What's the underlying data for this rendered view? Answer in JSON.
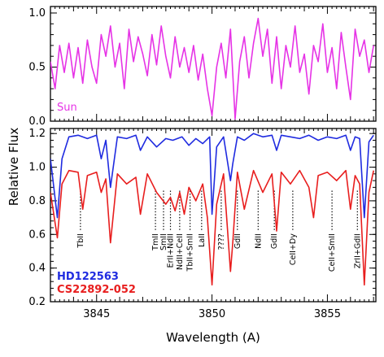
{
  "chart_data": [
    {
      "id": "sun-panel",
      "type": "line",
      "xlim": [
        3843.0,
        3857.1
      ],
      "ylim": [
        0.0,
        1.06
      ],
      "yticks": [
        0.0,
        0.5,
        1.0
      ],
      "ytick_labels": [
        "0.0",
        "0.5",
        "1.0"
      ],
      "series": [
        {
          "name": "Sun",
          "color": "#e633e6",
          "x": [
            3843.0,
            3843.2,
            3843.4,
            3843.6,
            3843.8,
            3844.0,
            3844.2,
            3844.4,
            3844.6,
            3844.8,
            3845.0,
            3845.2,
            3845.4,
            3845.6,
            3845.8,
            3846.0,
            3846.2,
            3846.4,
            3846.6,
            3846.8,
            3847.0,
            3847.2,
            3847.4,
            3847.6,
            3847.8,
            3848.0,
            3848.2,
            3848.4,
            3848.6,
            3848.8,
            3849.0,
            3849.2,
            3849.4,
            3849.6,
            3849.8,
            3850.0,
            3850.2,
            3850.4,
            3850.6,
            3850.8,
            3851.0,
            3851.2,
            3851.4,
            3851.6,
            3851.8,
            3852.0,
            3852.2,
            3852.4,
            3852.6,
            3852.8,
            3853.0,
            3853.2,
            3853.4,
            3853.6,
            3853.8,
            3854.0,
            3854.2,
            3854.4,
            3854.6,
            3854.8,
            3855.0,
            3855.2,
            3855.4,
            3855.6,
            3855.8,
            3856.0,
            3856.2,
            3856.4,
            3856.6,
            3856.8,
            3857.0
          ],
          "y": [
            0.55,
            0.3,
            0.7,
            0.45,
            0.72,
            0.4,
            0.68,
            0.35,
            0.75,
            0.5,
            0.35,
            0.8,
            0.6,
            0.88,
            0.5,
            0.72,
            0.3,
            0.85,
            0.55,
            0.78,
            0.62,
            0.42,
            0.8,
            0.52,
            0.88,
            0.6,
            0.4,
            0.78,
            0.5,
            0.68,
            0.45,
            0.7,
            0.38,
            0.62,
            0.3,
            0.05,
            0.5,
            0.72,
            0.4,
            0.85,
            0.02,
            0.55,
            0.78,
            0.4,
            0.72,
            0.95,
            0.6,
            0.85,
            0.35,
            0.78,
            0.3,
            0.7,
            0.5,
            0.88,
            0.45,
            0.62,
            0.25,
            0.7,
            0.55,
            0.9,
            0.45,
            0.68,
            0.3,
            0.82,
            0.5,
            0.2,
            0.85,
            0.6,
            0.75,
            0.45,
            0.7
          ]
        }
      ],
      "legend": {
        "text": "Sun",
        "placement": "bottom-left"
      }
    },
    {
      "id": "stars-panel",
      "type": "line",
      "xlim": [
        3843.0,
        3857.1
      ],
      "ylim": [
        0.2,
        1.23
      ],
      "xticks": [
        3845,
        3850,
        3855
      ],
      "xtick_labels": [
        "3845",
        "3850",
        "3855"
      ],
      "yticks": [
        0.2,
        0.4,
        0.6,
        0.8,
        1.0,
        1.2
      ],
      "ytick_labels": [
        "0.2",
        "0.4",
        "0.6",
        "0.8",
        "1.0",
        "1.2"
      ],
      "series": [
        {
          "name": "HD122563",
          "color": "#1f2be0",
          "x": [
            3843.0,
            3843.3,
            3843.5,
            3843.8,
            3844.2,
            3844.6,
            3845.0,
            3845.2,
            3845.4,
            3845.6,
            3845.9,
            3846.3,
            3846.7,
            3846.9,
            3847.2,
            3847.6,
            3848.0,
            3848.3,
            3848.7,
            3849.0,
            3849.3,
            3849.6,
            3849.9,
            3850.0,
            3850.2,
            3850.5,
            3850.8,
            3850.9,
            3851.1,
            3851.4,
            3851.8,
            3852.2,
            3852.6,
            3852.8,
            3853.0,
            3853.4,
            3853.8,
            3854.2,
            3854.6,
            3855.0,
            3855.4,
            3855.8,
            3856.0,
            3856.2,
            3856.4,
            3856.6,
            3856.8,
            3857.0
          ],
          "y": [
            1.05,
            0.7,
            1.05,
            1.18,
            1.19,
            1.17,
            1.19,
            1.05,
            1.16,
            0.88,
            1.18,
            1.17,
            1.19,
            1.1,
            1.18,
            1.12,
            1.17,
            1.16,
            1.18,
            1.13,
            1.17,
            1.14,
            1.18,
            0.72,
            1.12,
            1.18,
            0.92,
            1.02,
            1.18,
            1.16,
            1.2,
            1.18,
            1.19,
            1.1,
            1.19,
            1.18,
            1.17,
            1.19,
            1.16,
            1.18,
            1.17,
            1.19,
            1.1,
            1.18,
            1.17,
            0.7,
            1.15,
            1.19
          ]
        },
        {
          "name": "CS22892-052",
          "color": "#e81e1e",
          "x": [
            3843.0,
            3843.3,
            3843.5,
            3843.8,
            3844.2,
            3844.4,
            3844.6,
            3845.0,
            3845.2,
            3845.4,
            3845.6,
            3845.9,
            3846.3,
            3846.7,
            3846.9,
            3847.2,
            3847.6,
            3848.0,
            3848.2,
            3848.4,
            3848.6,
            3848.8,
            3849.0,
            3849.3,
            3849.6,
            3849.8,
            3850.0,
            3850.2,
            3850.5,
            3850.8,
            3850.9,
            3851.1,
            3851.4,
            3851.8,
            3852.2,
            3852.6,
            3852.8,
            3853.0,
            3853.4,
            3853.8,
            3854.2,
            3854.4,
            3854.6,
            3855.0,
            3855.4,
            3855.8,
            3856.0,
            3856.2,
            3856.4,
            3856.6,
            3856.8,
            3857.0
          ],
          "y": [
            0.85,
            0.58,
            0.9,
            0.98,
            0.97,
            0.75,
            0.95,
            0.97,
            0.85,
            0.93,
            0.55,
            0.96,
            0.9,
            0.94,
            0.72,
            0.96,
            0.85,
            0.78,
            0.82,
            0.74,
            0.85,
            0.72,
            0.88,
            0.8,
            0.9,
            0.7,
            0.3,
            0.78,
            0.96,
            0.38,
            0.55,
            0.97,
            0.75,
            0.98,
            0.85,
            0.96,
            0.62,
            0.97,
            0.9,
            0.98,
            0.88,
            0.7,
            0.95,
            0.97,
            0.92,
            0.98,
            0.75,
            0.95,
            0.9,
            0.3,
            0.85,
            0.98
          ]
        }
      ],
      "legend": [
        {
          "text": "HD122563",
          "color": "#1f2be0",
          "placement": "bottom-left"
        },
        {
          "text": "CS22892-052",
          "color": "#e81e1e",
          "placement": "bottom-left"
        }
      ],
      "annotations": [
        {
          "text": "TbII",
          "x": 3844.3
        },
        {
          "text": "SmII",
          "x": 3847.9
        },
        {
          "text": "TmII",
          "x": 3847.55
        },
        {
          "text": "ErII+NdII",
          "x": 3848.2
        },
        {
          "text": "NdII+CeII",
          "x": 3848.6
        },
        {
          "text": "TbII+SmII",
          "x": 3849.05
        },
        {
          "text": "LaII",
          "x": 3849.55
        },
        {
          "text": "????",
          "x": 3850.4
        },
        {
          "text": "GdII",
          "x": 3851.1
        },
        {
          "text": "NdII",
          "x": 3852.0
        },
        {
          "text": "GdII",
          "x": 3852.7
        },
        {
          "text": "CeII+Dy",
          "x": 3853.5
        },
        {
          "text": "CeII+SmII",
          "x": 3855.2
        },
        {
          "text": "ZrII+GdII",
          "x": 3856.3
        }
      ]
    }
  ],
  "xlabel": "Wavelength (A)",
  "ylabel": "Relative Flux",
  "sun_label": "Sun",
  "legend_hd": "HD122563",
  "legend_cs": "CS22892-052"
}
